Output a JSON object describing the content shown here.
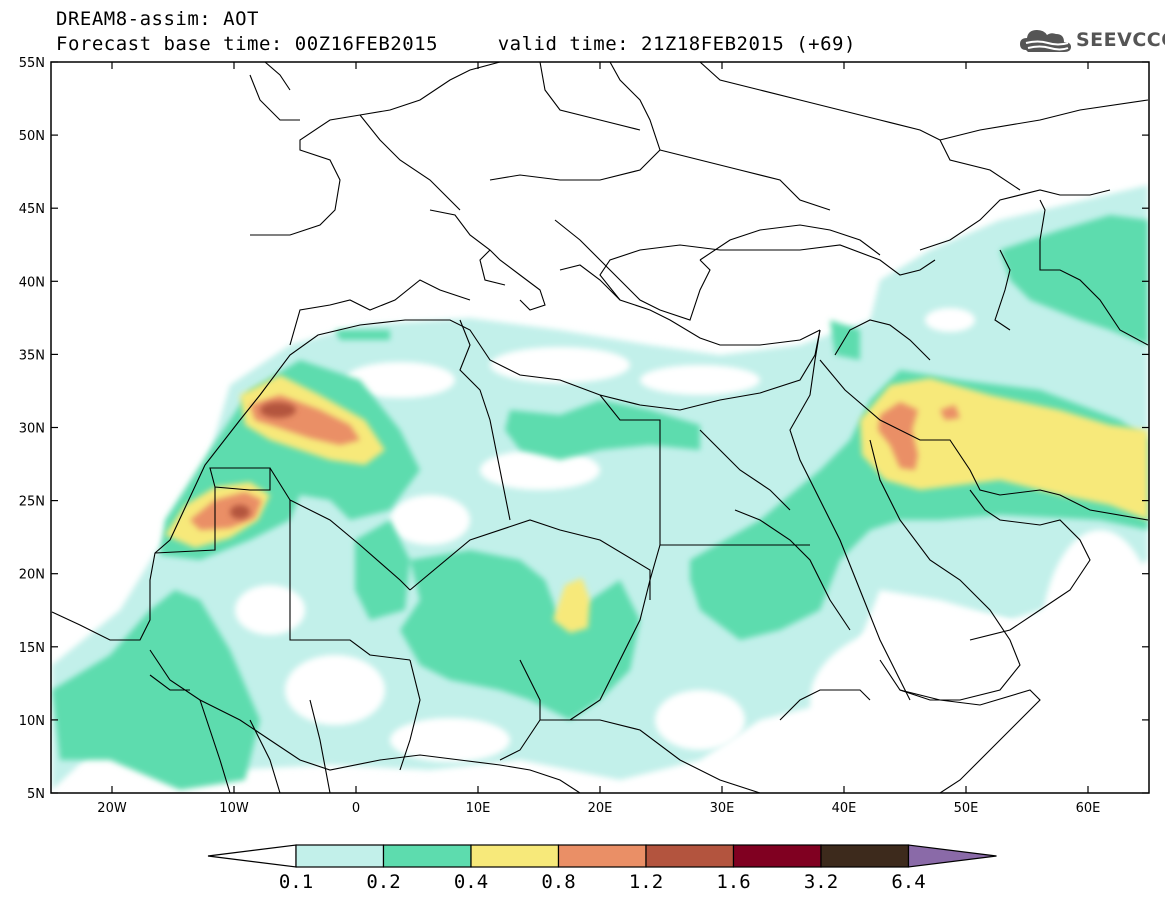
{
  "header": {
    "line1": "DREAM8-assim: AOT",
    "line2": "Forecast base time: 00Z16FEB2015     valid time: 21Z18FEB2015 (+69)"
  },
  "logo": {
    "text": "SEEVCCC",
    "icon": "cloud-icon",
    "color": "#555555"
  },
  "map": {
    "lon_range": [
      -25,
      65
    ],
    "lat_range": [
      5,
      55
    ],
    "lat_ticks": [
      "5N",
      "10N",
      "15N",
      "20N",
      "25N",
      "30N",
      "35N",
      "40N",
      "45N",
      "50N",
      "55N"
    ],
    "lon_ticks": [
      "20W",
      "10W",
      "0",
      "10E",
      "20E",
      "30E",
      "40E",
      "50E",
      "60E"
    ]
  },
  "colorbar": {
    "labels": [
      "0.1",
      "0.2",
      "0.4",
      "0.8",
      "1.2",
      "1.6",
      "3.2",
      "6.4"
    ],
    "colors": [
      "#ffffff",
      "#c2f0ea",
      "#5ddcae",
      "#f7e97a",
      "#ea8f66",
      "#b3543e",
      "#800021",
      "#3d2a1c",
      "#8a6aa8"
    ]
  }
}
